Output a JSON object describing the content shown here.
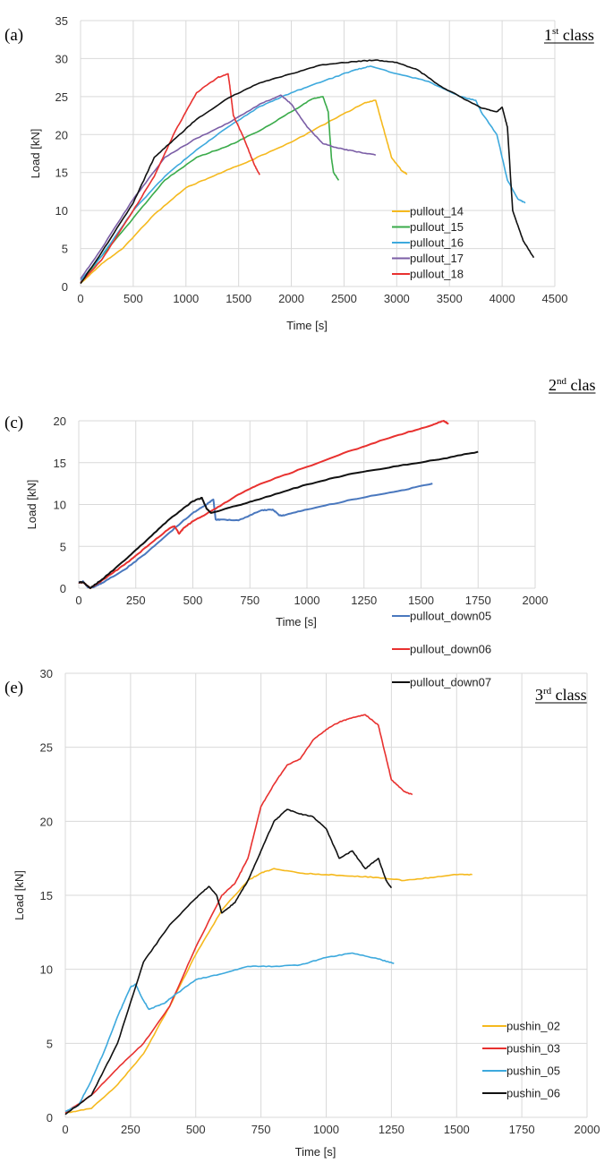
{
  "chart_data": [
    {
      "type": "line",
      "panel_label": "(a)",
      "class_label": {
        "sup": "st",
        "rest": "class",
        "num": "1"
      },
      "xlabel": "Time [s]",
      "ylabel": "Load [kN]",
      "xlim": [
        0,
        4500
      ],
      "ylim": [
        0,
        35
      ],
      "xticks": [
        0,
        500,
        1000,
        1500,
        2000,
        2500,
        3000,
        3500,
        4000,
        4500
      ],
      "yticks": [
        0,
        5,
        10,
        15,
        20,
        25,
        30,
        35
      ],
      "grid": true,
      "legend_position": "bottom-right",
      "series": [
        {
          "name": "pullout_14",
          "color": "#f5b91e",
          "x": [
            0,
            200,
            400,
            700,
            1000,
            1300,
            1600,
            2000,
            2400,
            2700,
            2800,
            2870,
            2950,
            3050,
            3100
          ],
          "y": [
            0.4,
            3,
            5,
            9.5,
            13,
            14.8,
            16.5,
            19,
            22,
            24.2,
            24.5,
            21,
            17,
            15.2,
            14.8
          ]
        },
        {
          "name": "pullout_15",
          "color": "#3aab4a",
          "x": [
            0,
            200,
            500,
            800,
            1100,
            1400,
            1700,
            2000,
            2200,
            2300,
            2350,
            2380,
            2400,
            2450
          ],
          "y": [
            0.5,
            4,
            9,
            14,
            17,
            18.5,
            20.5,
            23,
            24.7,
            25,
            23,
            17,
            15,
            14
          ]
        },
        {
          "name": "pullout_16",
          "color": "#3da9dd",
          "x": [
            0,
            200,
            500,
            800,
            1100,
            1400,
            1700,
            2000,
            2300,
            2600,
            2750,
            3000,
            3300,
            3600,
            3750,
            3800,
            3950,
            4050,
            4150,
            4220
          ],
          "y": [
            0.8,
            4,
            10,
            14.5,
            18,
            21,
            23.7,
            25.5,
            27,
            28.5,
            29,
            28,
            27,
            25,
            24.5,
            23,
            20,
            14,
            11.5,
            11
          ]
        },
        {
          "name": "pullout_17",
          "color": "#7b5ea6",
          "x": [
            0,
            200,
            500,
            800,
            1100,
            1400,
            1700,
            1900,
            2000,
            2150,
            2300,
            2450,
            2600,
            2800
          ],
          "y": [
            1,
            5,
            11.5,
            17,
            19.5,
            21.5,
            24,
            25.2,
            24,
            21,
            18.8,
            18.2,
            17.8,
            17.3
          ]
        },
        {
          "name": "pullout_18",
          "color": "#e8312f",
          "x": [
            0,
            200,
            500,
            700,
            900,
            1100,
            1300,
            1400,
            1420,
            1450,
            1550,
            1650,
            1700
          ],
          "y": [
            0.5,
            3.5,
            10,
            14.5,
            20.5,
            25.5,
            27.5,
            28,
            26,
            22.5,
            19.5,
            16,
            14.7
          ]
        },
        {
          "name": "",
          "color": "#111111",
          "x": [
            0,
            200,
            500,
            700,
            900,
            1100,
            1400,
            1700,
            2000,
            2300,
            2600,
            2800,
            3000,
            3200,
            3400,
            3600,
            3800,
            3950,
            4000,
            4050,
            4100,
            4200,
            4300
          ],
          "y": [
            0.4,
            4.5,
            11,
            17,
            19.5,
            22,
            24.8,
            26.8,
            28,
            29.2,
            29.6,
            29.8,
            29.5,
            28.5,
            26.5,
            25,
            23.5,
            23,
            23.6,
            21,
            10,
            6,
            3.8
          ]
        }
      ]
    },
    {
      "type": "line",
      "panel_label": "(c)",
      "class_label": {
        "sup": "nd",
        "rest": "clas",
        "num": "2"
      },
      "xlabel": "Time [s]",
      "ylabel": "Load [kN]",
      "xlim": [
        0,
        2000
      ],
      "ylim": [
        0,
        20
      ],
      "xticks": [
        0,
        250,
        500,
        750,
        1000,
        1250,
        1500,
        1750,
        2000
      ],
      "yticks": [
        0,
        5,
        10,
        15,
        20
      ],
      "grid": true,
      "legend_position": "bottom-right",
      "series": [
        {
          "name": "pullout_down05",
          "color": "#4a78be",
          "x": [
            0,
            20,
            40,
            60,
            100,
            200,
            300,
            400,
            500,
            560,
            590,
            600,
            620,
            700,
            800,
            850,
            880,
            900,
            1000,
            1200,
            1400,
            1550
          ],
          "y": [
            0.7,
            0.8,
            0.1,
            0.1,
            0.6,
            2.2,
            4.3,
            6.7,
            9,
            10,
            10.6,
            8.2,
            8.2,
            8.1,
            9.3,
            9.4,
            8.7,
            8.7,
            9.4,
            10.6,
            11.6,
            12.5
          ]
        },
        {
          "name": "pullout_down06",
          "color": "#e8312f",
          "x": [
            0,
            20,
            50,
            100,
            200,
            300,
            400,
            420,
            440,
            460,
            500,
            600,
            700,
            800,
            1000,
            1200,
            1400,
            1550,
            1600,
            1620
          ],
          "y": [
            0.7,
            0.7,
            0,
            0.9,
            2.8,
            5,
            7.2,
            7.4,
            6.5,
            7.2,
            8,
            9.5,
            11.2,
            12.5,
            14.5,
            16.5,
            18.3,
            19.5,
            20,
            19.6
          ]
        },
        {
          "name": "pullout_down07",
          "color": "#111111",
          "x": [
            0,
            20,
            50,
            100,
            200,
            300,
            400,
            500,
            540,
            560,
            580,
            700,
            800,
            1000,
            1200,
            1400,
            1600,
            1750
          ],
          "y": [
            0.7,
            0.7,
            0,
            1,
            3.3,
            5.8,
            8.3,
            10.4,
            10.8,
            9.5,
            9,
            9.9,
            10.7,
            12.4,
            13.7,
            14.6,
            15.5,
            16.3
          ]
        }
      ]
    },
    {
      "type": "line",
      "panel_label": "(e)",
      "class_label": {
        "sup": "rd",
        "rest": "class",
        "num": "3"
      },
      "xlabel": "Time [s]",
      "ylabel": "Load [kN]",
      "xlim": [
        0,
        2000
      ],
      "ylim": [
        0,
        30
      ],
      "xticks": [
        0,
        250,
        500,
        750,
        1000,
        1250,
        1500,
        1750,
        2000
      ],
      "yticks": [
        0,
        5,
        10,
        15,
        20,
        25,
        30
      ],
      "grid": true,
      "legend_position": "bottom-right",
      "series": [
        {
          "name": "pushin_02",
          "color": "#f5b91e",
          "x": [
            0,
            100,
            200,
            300,
            400,
            500,
            600,
            700,
            750,
            800,
            900,
            1000,
            1100,
            1200,
            1300,
            1400,
            1500,
            1560
          ],
          "y": [
            0.3,
            0.6,
            2.2,
            4.3,
            7.5,
            11,
            14,
            16,
            16.5,
            16.8,
            16.5,
            16.4,
            16.3,
            16.2,
            16,
            16.2,
            16.4,
            16.4
          ]
        },
        {
          "name": "pushin_03",
          "color": "#e8312f",
          "x": [
            0,
            100,
            200,
            300,
            400,
            500,
            600,
            650,
            700,
            750,
            800,
            850,
            900,
            950,
            1000,
            1050,
            1100,
            1150,
            1200,
            1220,
            1250,
            1300,
            1330
          ],
          "y": [
            0.3,
            1.5,
            3.3,
            5,
            7.5,
            11.5,
            15,
            15.8,
            17.5,
            21,
            22.5,
            23.8,
            24.2,
            25.5,
            26.2,
            26.7,
            27,
            27.2,
            26.5,
            25,
            22.8,
            22,
            21.8
          ]
        },
        {
          "name": "pushin_05",
          "color": "#3da9dd",
          "x": [
            0,
            50,
            100,
            150,
            200,
            250,
            270,
            290,
            320,
            380,
            400,
            500,
            600,
            700,
            800,
            900,
            1000,
            1100,
            1200,
            1260
          ],
          "y": [
            0.4,
            0.8,
            2.5,
            4.5,
            6.8,
            8.8,
            9,
            8.2,
            7.3,
            7.7,
            8,
            9.3,
            9.7,
            10.2,
            10.2,
            10.3,
            10.8,
            11.1,
            10.7,
            10.4
          ]
        },
        {
          "name": "pushin_06",
          "color": "#111111",
          "x": [
            0,
            100,
            200,
            300,
            400,
            500,
            550,
            580,
            600,
            650,
            700,
            750,
            800,
            850,
            900,
            950,
            1000,
            1050,
            1100,
            1150,
            1200,
            1230,
            1250
          ],
          "y": [
            0.2,
            1.5,
            5,
            10.5,
            13,
            14.8,
            15.6,
            15,
            13.8,
            14.5,
            16,
            18,
            20,
            20.8,
            20.5,
            20.3,
            19.5,
            17.5,
            18,
            16.8,
            17.5,
            16,
            15.5
          ]
        }
      ]
    }
  ]
}
